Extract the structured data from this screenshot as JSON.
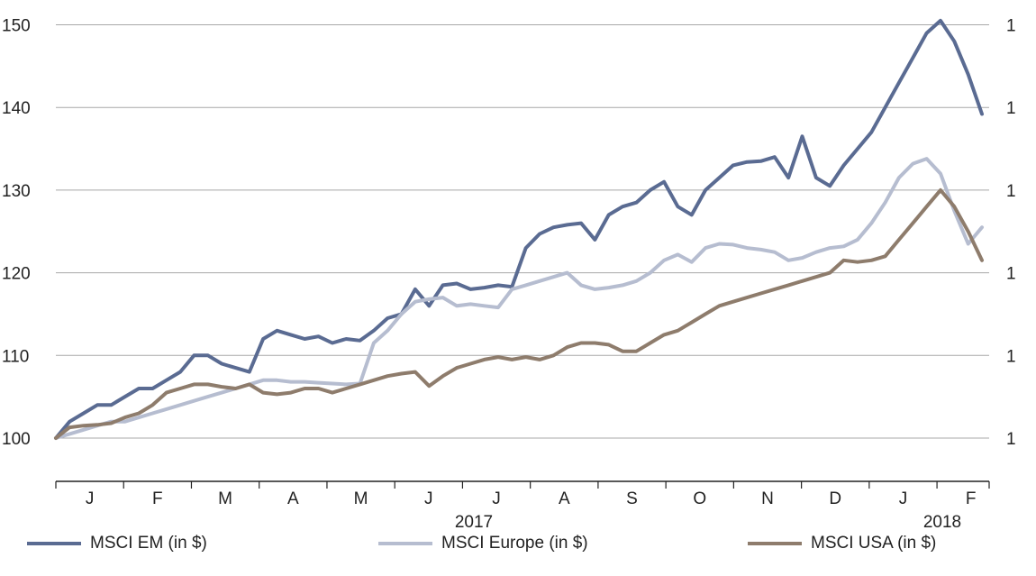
{
  "chart_data": {
    "type": "line",
    "ylim": [
      95,
      155
    ],
    "left_axis_ticks": [
      100,
      110,
      120,
      130,
      140,
      150
    ],
    "right_axis_tick_labels": [
      "1",
      "1",
      "1",
      "1",
      "1",
      "1"
    ],
    "x_month_labels": [
      "J",
      "F",
      "M",
      "A",
      "M",
      "J",
      "J",
      "A",
      "S",
      "O",
      "N",
      "D",
      "J",
      "F"
    ],
    "year_labels": [
      "2017",
      "2018"
    ],
    "grid": true,
    "legend_position": "bottom",
    "series": [
      {
        "name": "MSCI EM (in $)",
        "color": "#5a6b92",
        "values": [
          100,
          102,
          103,
          104,
          104,
          105,
          106,
          106,
          107,
          108,
          110,
          110,
          109,
          108.5,
          108,
          112,
          113,
          112.5,
          112,
          112.3,
          111.5,
          112,
          111.8,
          113,
          114.5,
          115,
          118,
          116,
          118.5,
          118.7,
          118,
          118.2,
          118.5,
          118.3,
          123,
          124.7,
          125.5,
          125.8,
          126,
          124,
          127,
          128,
          128.5,
          130,
          131,
          128,
          127,
          130,
          131.5,
          133,
          133.4,
          133.5,
          134,
          131.5,
          136.5,
          131.5,
          130.5,
          133,
          135,
          137,
          140,
          143,
          146,
          149,
          150.5,
          148,
          144,
          139.2
        ]
      },
      {
        "name": "MSCI Europe (in $)",
        "color": "#b6bdd0",
        "values": [
          100,
          100.5,
          101,
          101.5,
          102,
          102,
          102.5,
          103,
          103.5,
          104,
          104.5,
          105,
          105.5,
          106,
          106.5,
          107,
          107,
          106.8,
          106.8,
          106.7,
          106.6,
          106.5,
          106.6,
          111.5,
          113,
          115,
          116.5,
          116.8,
          117,
          116,
          116.2,
          116,
          115.8,
          118,
          118.5,
          119,
          119.5,
          120,
          118.5,
          118,
          118.2,
          118.5,
          119,
          120,
          121.5,
          122.2,
          121.3,
          123,
          123.5,
          123.4,
          123,
          122.8,
          122.5,
          121.5,
          121.8,
          122.5,
          123,
          123.2,
          124,
          126,
          128.5,
          131.5,
          133.2,
          133.8,
          132,
          127.5,
          123.5,
          125.5
        ]
      },
      {
        "name": "MSCI USA (in $)",
        "color": "#8e7c6c",
        "values": [
          100,
          101.3,
          101.5,
          101.6,
          101.8,
          102.5,
          103,
          104,
          105.5,
          106,
          106.5,
          106.5,
          106.2,
          106,
          106.5,
          105.5,
          105.3,
          105.5,
          106,
          106,
          105.5,
          106,
          106.5,
          107,
          107.5,
          107.8,
          108,
          106.3,
          107.5,
          108.5,
          109,
          109.5,
          109.8,
          109.5,
          109.8,
          109.5,
          110,
          111,
          111.5,
          111.5,
          111.3,
          110.5,
          110.5,
          111.5,
          112.5,
          113,
          114,
          115,
          116,
          116.5,
          117,
          117.5,
          118,
          118.5,
          119,
          119.5,
          120,
          121.5,
          121.3,
          121.5,
          122,
          124,
          126,
          128,
          130,
          128,
          125,
          121.5
        ]
      }
    ]
  }
}
